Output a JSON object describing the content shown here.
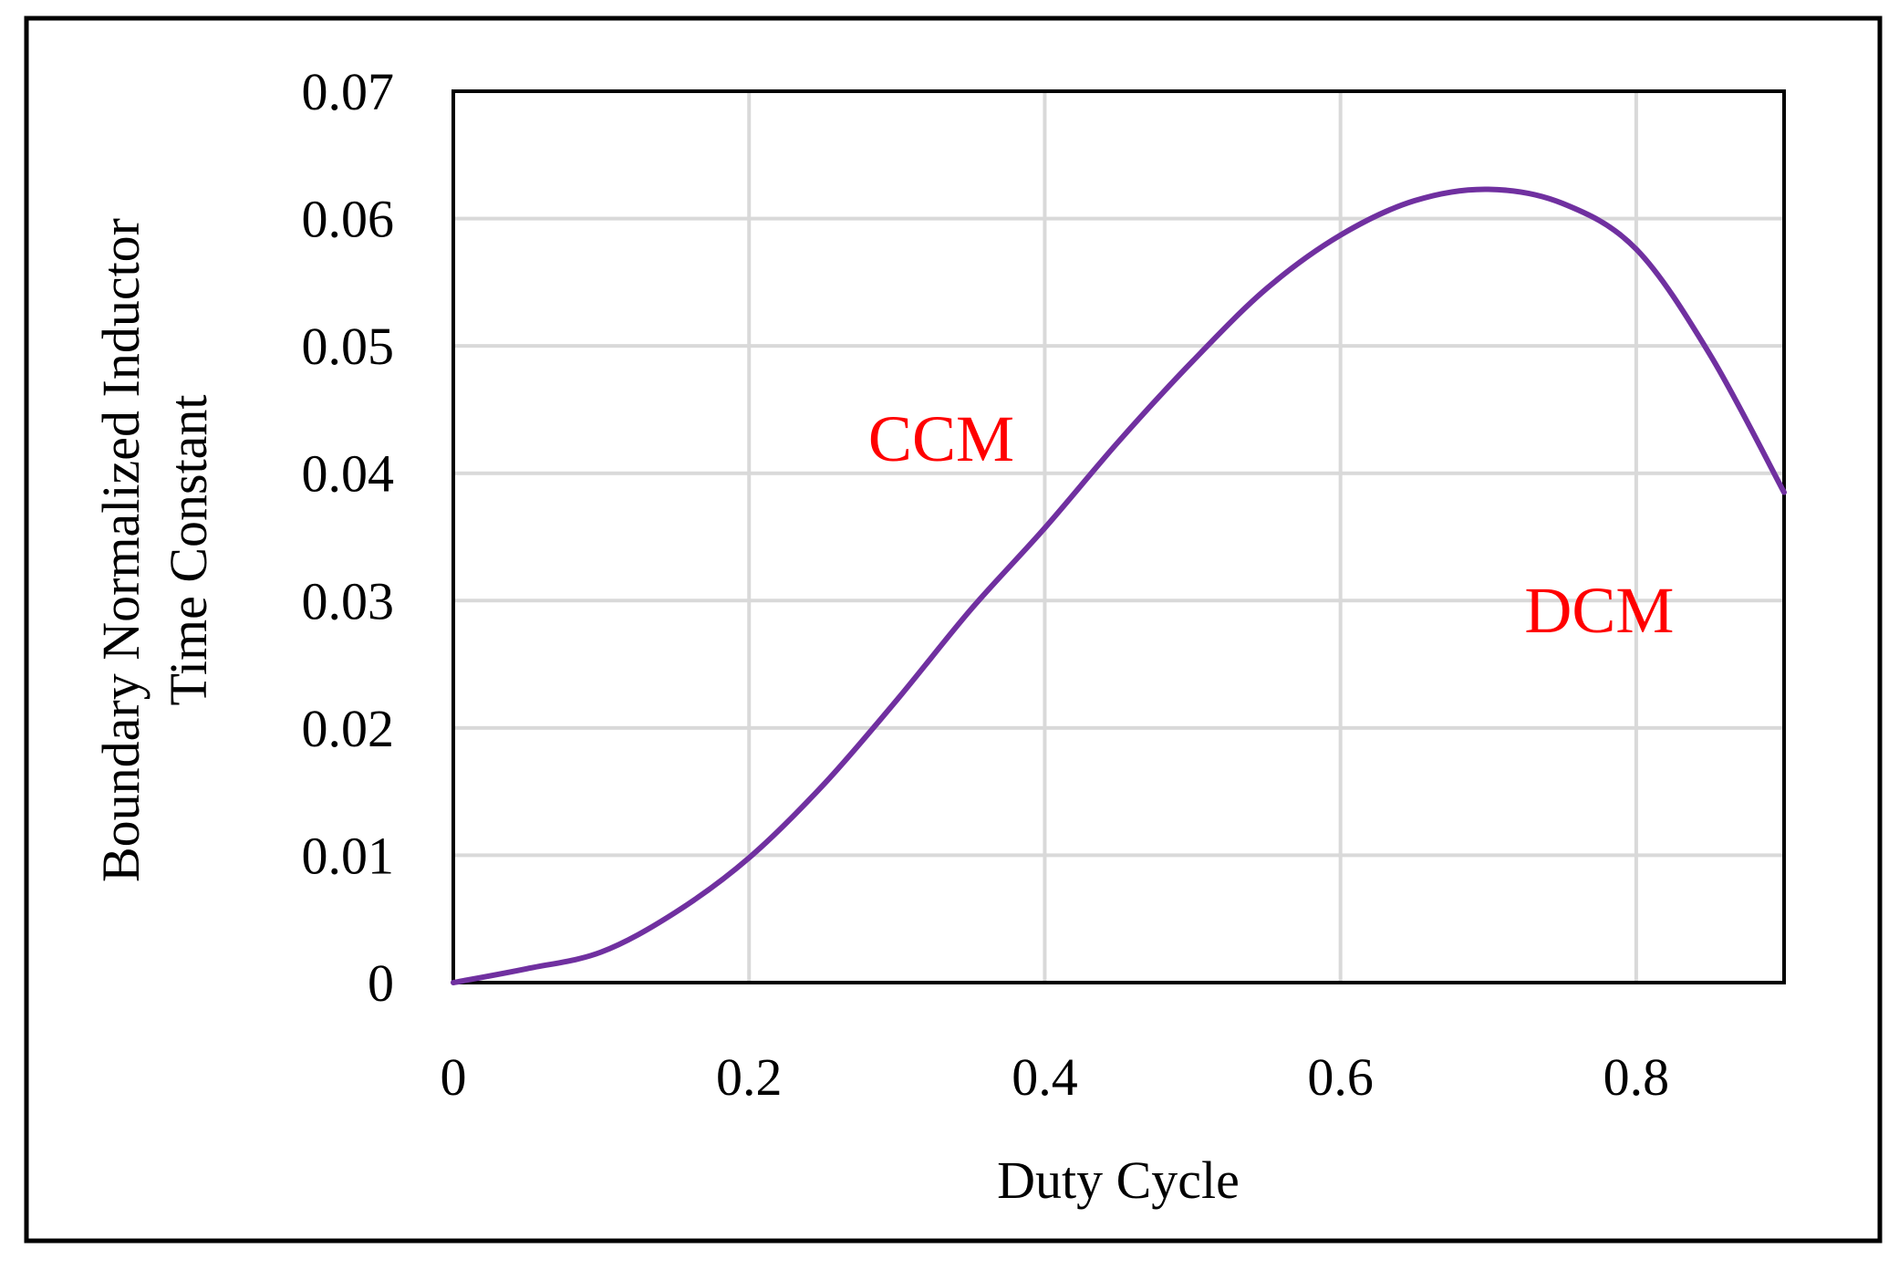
{
  "colors": {
    "series": "#7030a0",
    "annotation": "#ff0000",
    "grid": "#d9d9d9",
    "frame": "#000000"
  },
  "chart_data": {
    "type": "line",
    "title": "",
    "xlabel": "Duty Cycle",
    "ylabel_lines": [
      "Boundary Normalized Inductor",
      "Time Constant"
    ],
    "xlim": [
      0,
      0.9
    ],
    "ylim": [
      0,
      0.07
    ],
    "x_ticks": [
      0,
      0.2,
      0.4,
      0.6,
      0.8
    ],
    "x_tick_labels": [
      "0",
      "0.2",
      "0.4",
      "0.6",
      "0.8"
    ],
    "y_ticks": [
      0,
      0.01,
      0.02,
      0.03,
      0.04,
      0.05,
      0.06,
      0.07
    ],
    "y_tick_labels": [
      "0",
      "0.01",
      "0.02",
      "0.03",
      "0.04",
      "0.05",
      "0.06",
      "0.07"
    ],
    "grid": true,
    "legend": "none",
    "series": [
      {
        "name": "Boundary",
        "x": [
          0,
          0.05,
          0.1,
          0.15,
          0.2,
          0.25,
          0.3,
          0.35,
          0.4,
          0.45,
          0.5,
          0.55,
          0.6,
          0.65,
          0.7,
          0.75,
          0.8,
          0.85,
          0.9
        ],
        "y": [
          0.0,
          0.0011,
          0.0024,
          0.0055,
          0.0098,
          0.0155,
          0.0222,
          0.0293,
          0.0357,
          0.0425,
          0.0488,
          0.0545,
          0.0587,
          0.0614,
          0.0623,
          0.0612,
          0.0576,
          0.0493,
          0.0385
        ]
      }
    ],
    "annotations": [
      {
        "text": "CCM",
        "x": 0.33,
        "y": 0.041
      },
      {
        "text": "DCM",
        "x": 0.775,
        "y": 0.0275
      }
    ]
  }
}
